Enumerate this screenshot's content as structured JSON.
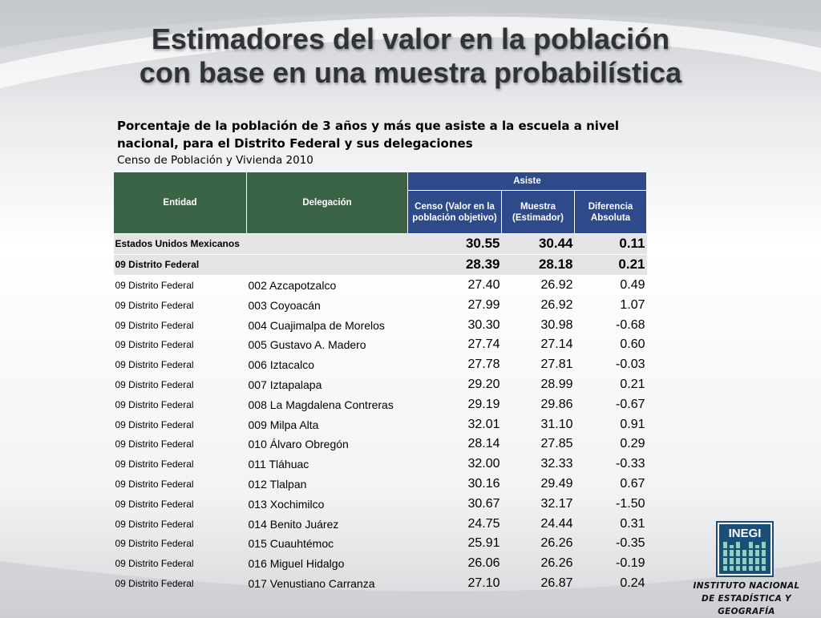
{
  "title_lines": [
    "Estimadores del valor en la población",
    "con base en una muestra probabilística"
  ],
  "subtitle": "Porcentaje de la población de 3 años y más que asiste a la escuela a nivel nacional, para el Distrito Federal y sus delegaciones",
  "source": "Censo de Población y Vivienda 2010",
  "table": {
    "headers": {
      "entidad": "Entidad",
      "delegacion": "Delegación",
      "asiste": "Asiste",
      "censo": "Censo (Valor en la población objetivo)",
      "muestra": "Muestra (Estimador)",
      "diferencia": "Diferencia Absoluta"
    },
    "rows": [
      {
        "entidad": "Estados Unidos Mexicanos",
        "delegacion": "",
        "censo": "30.55",
        "muestra": "30.44",
        "diferencia": "0.11",
        "total": true
      },
      {
        "entidad": "09 Distrito Federal",
        "delegacion": "",
        "censo": "28.39",
        "muestra": "28.18",
        "diferencia": "0.21",
        "total": true
      },
      {
        "entidad": "09 Distrito Federal",
        "delegacion": "002 Azcapotzalco",
        "censo": "27.40",
        "muestra": "26.92",
        "diferencia": "0.49"
      },
      {
        "entidad": "09 Distrito Federal",
        "delegacion": "003 Coyoacán",
        "censo": "27.99",
        "muestra": "26.92",
        "diferencia": "1.07"
      },
      {
        "entidad": "09 Distrito Federal",
        "delegacion": "004 Cuajimalpa de Morelos",
        "censo": "30.30",
        "muestra": "30.98",
        "diferencia": "-0.68"
      },
      {
        "entidad": "09 Distrito Federal",
        "delegacion": "005 Gustavo A. Madero",
        "censo": "27.74",
        "muestra": "27.14",
        "diferencia": "0.60"
      },
      {
        "entidad": "09 Distrito Federal",
        "delegacion": "006 Iztacalco",
        "censo": "27.78",
        "muestra": "27.81",
        "diferencia": "-0.03"
      },
      {
        "entidad": "09 Distrito Federal",
        "delegacion": "007 Iztapalapa",
        "censo": "29.20",
        "muestra": "28.99",
        "diferencia": "0.21"
      },
      {
        "entidad": "09 Distrito Federal",
        "delegacion": "008 La Magdalena Contreras",
        "censo": "29.19",
        "muestra": "29.86",
        "diferencia": "-0.67"
      },
      {
        "entidad": "09 Distrito Federal",
        "delegacion": "009 Milpa Alta",
        "censo": "32.01",
        "muestra": "31.10",
        "diferencia": "0.91"
      },
      {
        "entidad": "09 Distrito Federal",
        "delegacion": "010 Álvaro Obregón",
        "censo": "28.14",
        "muestra": "27.85",
        "diferencia": "0.29"
      },
      {
        "entidad": "09 Distrito Federal",
        "delegacion": "011 Tláhuac",
        "censo": "32.00",
        "muestra": "32.33",
        "diferencia": "-0.33"
      },
      {
        "entidad": "09 Distrito Federal",
        "delegacion": "012 Tlalpan",
        "censo": "30.16",
        "muestra": "29.49",
        "diferencia": "0.67"
      },
      {
        "entidad": "09 Distrito Federal",
        "delegacion": "013 Xochimilco",
        "censo": "30.67",
        "muestra": "32.17",
        "diferencia": "-1.50"
      },
      {
        "entidad": "09 Distrito Federal",
        "delegacion": "014 Benito Juárez",
        "censo": "24.75",
        "muestra": "24.44",
        "diferencia": "0.31"
      },
      {
        "entidad": "09 Distrito Federal",
        "delegacion": "015 Cuauhtémoc",
        "censo": "25.91",
        "muestra": "26.26",
        "diferencia": "-0.35"
      },
      {
        "entidad": "09 Distrito Federal",
        "delegacion": "016 Miguel Hidalgo",
        "censo": "26.06",
        "muestra": "26.26",
        "diferencia": "-0.19"
      },
      {
        "entidad": "09 Distrito Federal",
        "delegacion": "017 Venustiano Carranza",
        "censo": "27.10",
        "muestra": "26.87",
        "diferencia": "0.24"
      }
    ]
  },
  "logo": {
    "text": "INEGI",
    "icon": "inegi-logo-icon"
  },
  "institution_lines": [
    "INSTITUTO NACIONAL",
    "DE ESTADÍSTICA Y GEOGRAFÍA"
  ],
  "colors": {
    "header_green": "#3b6446",
    "header_blue": "#2f4a8a",
    "total_row_gray": "#e4e4e4"
  }
}
